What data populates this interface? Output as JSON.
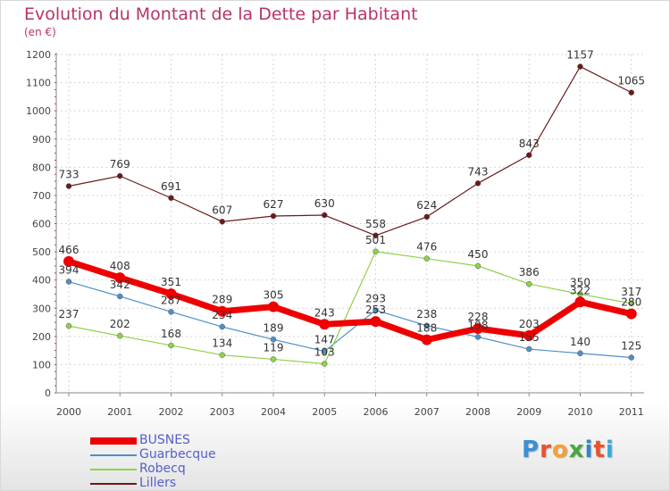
{
  "title": "Evolution du Montant de la Dette par Habitant",
  "subtitle": "(en €)",
  "logo": {
    "text": "Proxiti",
    "colors": [
      "#3c8fd6",
      "#e8522f",
      "#f2a03a",
      "#46a83e",
      "#2f86c9",
      "#e8522f",
      "#3aa9d8"
    ]
  },
  "chart_data": {
    "type": "line",
    "x": [
      "2000",
      "2001",
      "2002",
      "2003",
      "2004",
      "2005",
      "2006",
      "2007",
      "2008",
      "2009",
      "2010",
      "2011"
    ],
    "ylim": [
      0,
      1200
    ],
    "yticks": [
      "0",
      "100",
      "200",
      "300",
      "400",
      "500",
      "600",
      "700",
      "800",
      "900",
      "1000",
      "1100",
      "1200"
    ],
    "grid": true,
    "legend_position": "bottom-left",
    "series": [
      {
        "name": "BUSNES",
        "color": "#ee0000",
        "values": [
          466,
          408,
          351,
          289,
          305,
          243,
          253,
          188,
          228,
          203,
          322,
          280
        ],
        "labels": [
          "466",
          "408",
          "351",
          "289",
          "305",
          "243",
          "253",
          "188",
          "228",
          "203",
          "322",
          "280"
        ]
      },
      {
        "name": "Guarbecque",
        "color": "#4d8fc8",
        "values": [
          394,
          342,
          287,
          234,
          189,
          147,
          293,
          238,
          198,
          155,
          140,
          125
        ],
        "labels": [
          "394",
          "342",
          "287",
          "234",
          "189",
          "147",
          "293",
          "238",
          "198",
          "155",
          "140",
          "125"
        ]
      },
      {
        "name": "Robecq",
        "color": "#8ed24a",
        "values": [
          237,
          202,
          168,
          134,
          119,
          103,
          501,
          476,
          450,
          386,
          350,
          317
        ],
        "labels": [
          "237",
          "202",
          "168",
          "134",
          "119",
          "103",
          "501",
          "476",
          "450",
          "386",
          "350",
          "317"
        ]
      },
      {
        "name": "Lillers",
        "color": "#6b1a1a",
        "values": [
          733,
          769,
          691,
          607,
          627,
          630,
          558,
          624,
          743,
          843,
          1157,
          1065
        ],
        "labels": [
          "733",
          "769",
          "691",
          "607",
          "627",
          "630",
          "558",
          "624",
          "743",
          "843",
          "1157",
          "1065"
        ]
      }
    ]
  }
}
